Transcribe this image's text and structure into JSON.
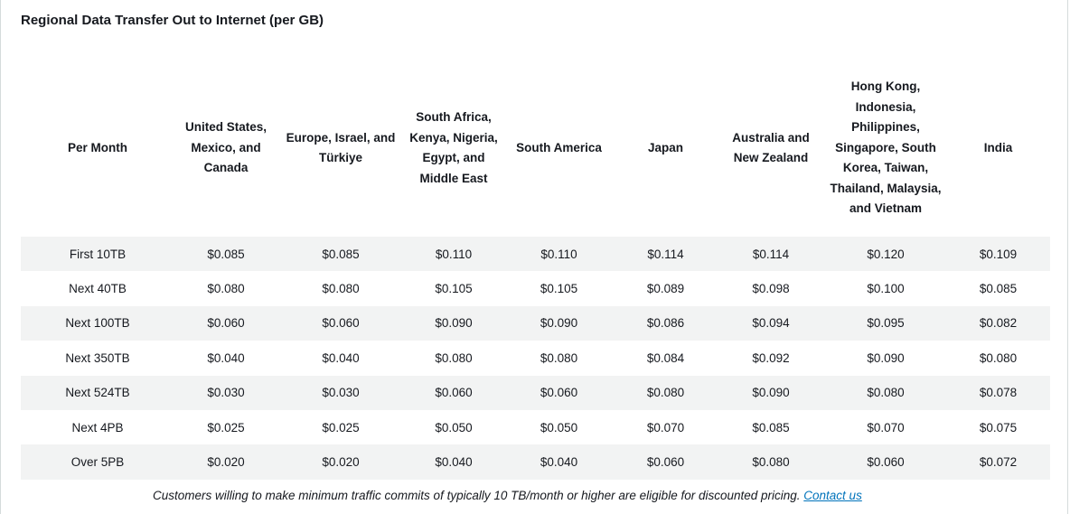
{
  "title": "Regional Data Transfer Out to Internet (per GB)",
  "table": {
    "headers": [
      "Per Month",
      "United States, Mexico, and Canada",
      "Europe, Israel, and Türkiye",
      "South Africa, Kenya, Nigeria, Egypt, and Middle East",
      "South America",
      "Japan",
      "Australia and New Zealand",
      "Hong Kong, Indonesia, Philippines, Singapore, South Korea, Taiwan, Thailand, Malaysia, and Vietnam",
      "India"
    ],
    "rows": [
      [
        "First 10TB",
        "$0.085",
        "$0.085",
        "$0.110",
        "$0.110",
        "$0.114",
        "$0.114",
        "$0.120",
        "$0.109"
      ],
      [
        "Next 40TB",
        "$0.080",
        "$0.080",
        "$0.105",
        "$0.105",
        "$0.089",
        "$0.098",
        "$0.100",
        "$0.085"
      ],
      [
        "Next 100TB",
        "$0.060",
        "$0.060",
        "$0.090",
        "$0.090",
        "$0.086",
        "$0.094",
        "$0.095",
        "$0.082"
      ],
      [
        "Next 350TB",
        "$0.040",
        "$0.040",
        "$0.080",
        "$0.080",
        "$0.084",
        "$0.092",
        "$0.090",
        "$0.080"
      ],
      [
        "Next 524TB",
        "$0.030",
        "$0.030",
        "$0.060",
        "$0.060",
        "$0.080",
        "$0.090",
        "$0.080",
        "$0.078"
      ],
      [
        "Next 4PB",
        "$0.025",
        "$0.025",
        "$0.050",
        "$0.050",
        "$0.070",
        "$0.085",
        "$0.070",
        "$0.075"
      ],
      [
        "Over 5PB",
        "$0.020",
        "$0.020",
        "$0.040",
        "$0.040",
        "$0.060",
        "$0.080",
        "$0.060",
        "$0.072"
      ]
    ]
  },
  "footnote": {
    "text": "Customers willing to make minimum traffic commits of typically 10 TB/month or higher are eligible for discounted pricing. ",
    "link_label": "Contact us"
  },
  "colors": {
    "stripe": "#f2f3f3",
    "link": "#0073bb",
    "text": "#16191f"
  }
}
